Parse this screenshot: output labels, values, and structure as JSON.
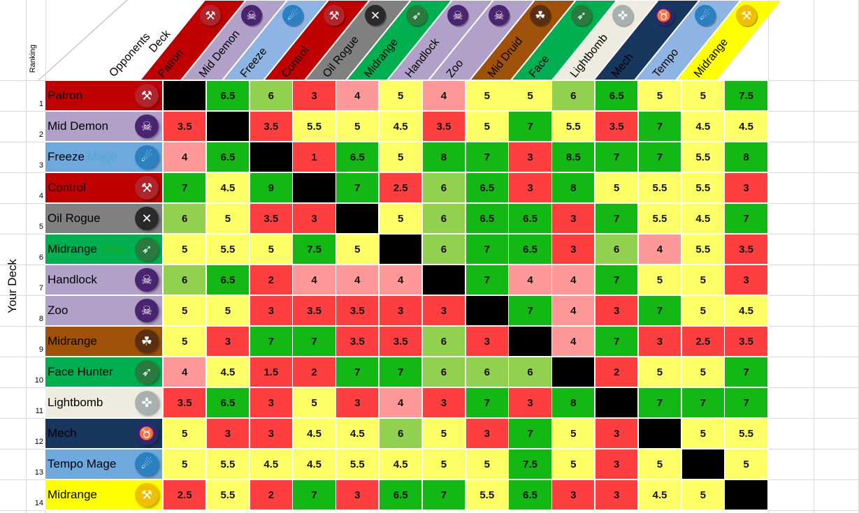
{
  "chart_data": {
    "type": "heatmap",
    "row_axis_label": "Your Deck",
    "column_axis_label": "Opponents Deck",
    "ranking_label": "Ranking",
    "corner_labels": {
      "opponents": "Opponents",
      "deck": "Deck"
    },
    "columns": [
      {
        "label": "Patron",
        "band_color": "#c00000",
        "icon": "warrior-axe-icon",
        "icon_color": "#b0242a"
      },
      {
        "label": "Mid Demon",
        "band_color": "#b1a0c7",
        "icon": "warlock-skull-icon",
        "icon_color": "#4a2470"
      },
      {
        "label": "Freeze",
        "band_color": "#8db4e2",
        "icon": "mage-fire-icon",
        "icon_color": "#2a80c0"
      },
      {
        "label": "Control",
        "band_color": "#c00000",
        "icon": "warrior-axe-icon",
        "icon_color": "#b0242a"
      },
      {
        "label": "Oil Rogue",
        "band_color": "#808080",
        "icon": "rogue-daggers-icon",
        "icon_color": "#2a2a2a"
      },
      {
        "label": "Midrange",
        "band_color": "#00b050",
        "icon": "hunter-bow-icon",
        "icon_color": "#2a7a40"
      },
      {
        "label": "Handlock",
        "band_color": "#b1a0c7",
        "icon": "warlock-skull-icon",
        "icon_color": "#4a2470"
      },
      {
        "label": "Zoo",
        "band_color": "#b1a0c7",
        "icon": "warlock-skull-icon",
        "icon_color": "#4a2470"
      },
      {
        "label": "Mid Druid",
        "band_color": "#a0520a",
        "icon": "druid-paw-icon",
        "icon_color": "#5a2e10"
      },
      {
        "label": "Face",
        "band_color": "#00b050",
        "icon": "hunter-bow-icon",
        "icon_color": "#2a7a40"
      },
      {
        "label": "Lightbomb",
        "band_color": "#eeece1",
        "icon": "priest-cross-icon",
        "icon_color": "#a8b0b0"
      },
      {
        "label": "Mech",
        "band_color": "#17375e",
        "icon": "shaman-bull-icon",
        "icon_color": "#2a2a70"
      },
      {
        "label": "Tempo",
        "band_color": "#8db4e2",
        "icon": "mage-fire-icon",
        "icon_color": "#2a80c0"
      },
      {
        "label": "Midrange",
        "band_color": "#ffff00",
        "icon": "paladin-hammer-icon",
        "icon_color": "#f0c000"
      }
    ],
    "rows": [
      {
        "rank": "1",
        "label": "Patron",
        "extra": "",
        "bg": "#c00000",
        "icon": "warrior-axe-icon",
        "icon_color": "#b0242a"
      },
      {
        "rank": "2",
        "label": "Mid Demon",
        "extra": "",
        "bg": "#b1a0c7",
        "icon": "warlock-skull-icon",
        "icon_color": "#4a2470"
      },
      {
        "rank": "3",
        "label": "Freeze",
        "extra": "Mage",
        "extra_color": "#4bacc6",
        "bg": "#6fa8dc",
        "icon": "mage-fire-icon",
        "icon_color": "#2a80c0"
      },
      {
        "rank": "4",
        "label": "Control",
        "extra": "",
        "bg": "#c00000",
        "icon": "warrior-axe-icon",
        "icon_color": "#b0242a"
      },
      {
        "rank": "5",
        "label": "Oil Rogue",
        "extra": "",
        "bg": "#808080",
        "icon": "rogue-daggers-icon",
        "icon_color": "#2a2a2a"
      },
      {
        "rank": "6",
        "label": "Midrange",
        "extra": "Hunt",
        "extra_color": "#1aaf1a",
        "bg": "#00b050",
        "icon": "hunter-bow-icon",
        "icon_color": "#2a7a40"
      },
      {
        "rank": "7",
        "label": "Handlock",
        "extra": "",
        "bg": "#b1a0c7",
        "icon": "warlock-skull-icon",
        "icon_color": "#4a2470"
      },
      {
        "rank": "8",
        "label": "Zoo",
        "extra": "",
        "bg": "#b1a0c7",
        "icon": "warlock-skull-icon",
        "icon_color": "#4a2470"
      },
      {
        "rank": "9",
        "label": "Midrange",
        "extra": "",
        "bg": "#a0520a",
        "icon": "druid-paw-icon",
        "icon_color": "#5a2e10"
      },
      {
        "rank": "10",
        "label": "Face Hunter",
        "extra": "",
        "bg": "#00b050",
        "icon": "hunter-bow-icon",
        "icon_color": "#2a7a40"
      },
      {
        "rank": "11",
        "label": "Lightbomb",
        "extra": "",
        "bg": "#eeece1",
        "icon": "priest-cross-icon",
        "icon_color": "#a8b0b0"
      },
      {
        "rank": "12",
        "label": "Mech",
        "extra": "",
        "bg": "#17375e",
        "icon": "shaman-bull-icon",
        "icon_color": "#2a2a70"
      },
      {
        "rank": "13",
        "label": "Tempo Mage",
        "extra": "",
        "bg": "#6fa8dc",
        "icon": "mage-fire-icon",
        "icon_color": "#2a80c0"
      },
      {
        "rank": "14",
        "label": "Midrange",
        "extra": "",
        "bg": "#ffff00",
        "icon": "paladin-hammer-icon",
        "icon_color": "#f0c000"
      }
    ],
    "values": [
      [
        null,
        6.5,
        6,
        3,
        4,
        5,
        4,
        5,
        5,
        6,
        6.5,
        5,
        5,
        7.5
      ],
      [
        3.5,
        null,
        3.5,
        5.5,
        5,
        4.5,
        3.5,
        5,
        7,
        5.5,
        3.5,
        7,
        4.5,
        4.5
      ],
      [
        4,
        6.5,
        null,
        1,
        6.5,
        5,
        8,
        7,
        3,
        8.5,
        7,
        7,
        5.5,
        8
      ],
      [
        7,
        4.5,
        9,
        null,
        7,
        2.5,
        6,
        6.5,
        3,
        8,
        5,
        5.5,
        5.5,
        3
      ],
      [
        6,
        5,
        3.5,
        3,
        null,
        5,
        6,
        6.5,
        6.5,
        3,
        7,
        5.5,
        4.5,
        7
      ],
      [
        5,
        5.5,
        5,
        7.5,
        5,
        null,
        6,
        7,
        6.5,
        3,
        6,
        4,
        5.5,
        3.5
      ],
      [
        6,
        6.5,
        2,
        4,
        4,
        4,
        null,
        7,
        4,
        4,
        7,
        5,
        5,
        3
      ],
      [
        5,
        5,
        3,
        3.5,
        3.5,
        3,
        3,
        null,
        7,
        4,
        3,
        7,
        5,
        4.5
      ],
      [
        5,
        3,
        7,
        7,
        3.5,
        3.5,
        6,
        3,
        null,
        4,
        7,
        3,
        2.5,
        3.5
      ],
      [
        4,
        4.5,
        1.5,
        2,
        7,
        7,
        6,
        6,
        6,
        null,
        2,
        5,
        5,
        7
      ],
      [
        3.5,
        6.5,
        3,
        5,
        3,
        4,
        3,
        7,
        3,
        8,
        null,
        7,
        7,
        7
      ],
      [
        5,
        3,
        3,
        4.5,
        4.5,
        6,
        5,
        3,
        7,
        5,
        3,
        null,
        5,
        5.5
      ],
      [
        5,
        5.5,
        4.5,
        4.5,
        5.5,
        4.5,
        5,
        5,
        7.5,
        5,
        3,
        5,
        null,
        5
      ],
      [
        2.5,
        5.5,
        2,
        7,
        3,
        6.5,
        7,
        5.5,
        6.5,
        3,
        3,
        4.5,
        5,
        null
      ]
    ],
    "color_scale": {
      "mirror": "#000000",
      "strong_win": "#14b814",
      "win": "#92d050",
      "even": "#ffff66",
      "slight_loss": "#ff9999",
      "loss": "#ff3f3f"
    }
  }
}
